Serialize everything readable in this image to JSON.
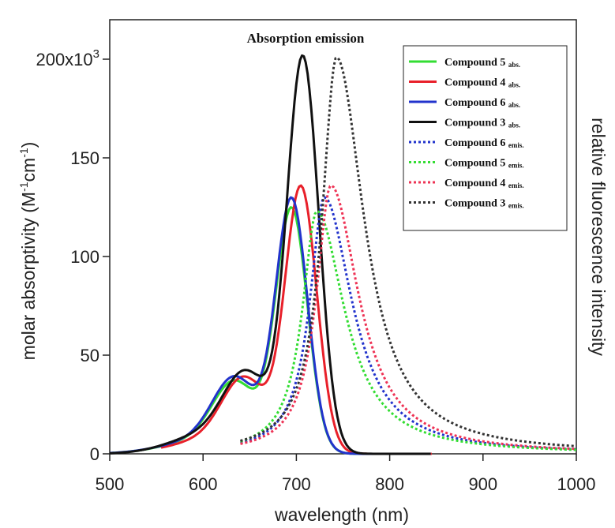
{
  "chart_data": {
    "type": "line",
    "annotation": "Absorption  emission",
    "xlabel": "wavelength (nm)",
    "ylabel": {
      "main": "molar absorptivity (M",
      "sup1": "-1",
      "mid": "cm",
      "sup2": "-1",
      "end": ")"
    },
    "y2label": "relative fluorescence intensity",
    "xlim": [
      500,
      1000
    ],
    "ylim": [
      0,
      220000
    ],
    "xticks": [
      500,
      600,
      700,
      800,
      900,
      1000
    ],
    "yticks": [
      {
        "value": 0,
        "label": "0"
      },
      {
        "value": 50000,
        "label": "50"
      },
      {
        "value": 100000,
        "label": "100"
      },
      {
        "value": 150000,
        "label": "150"
      },
      {
        "value": 200000,
        "label": "200x10",
        "sup": "3"
      }
    ],
    "legend_position": "top-right",
    "series": [
      {
        "name": "Compound 5",
        "sub": "abs.",
        "color": "#33dd33",
        "style": "solid",
        "kind": "abs",
        "peak_x": 695,
        "peak_y": 125000,
        "shoulder": 0.27,
        "start_x": 500
      },
      {
        "name": "Compound 4",
        "sub": "abs.",
        "color": "#e8202a",
        "style": "solid",
        "kind": "abs",
        "peak_x": 705,
        "peak_y": 136000,
        "shoulder": 0.26,
        "start_x": 555
      },
      {
        "name": "Compound 6",
        "sub": "abs.",
        "color": "#2233cc",
        "style": "solid",
        "kind": "abs",
        "peak_x": 695,
        "peak_y": 130000,
        "shoulder": 0.275,
        "start_x": 500
      },
      {
        "name": "Compound 3",
        "sub": "abs.",
        "color": "#111111",
        "style": "solid",
        "kind": "abs",
        "peak_x": 707,
        "peak_y": 202000,
        "shoulder": 0.18,
        "start_x": 500
      },
      {
        "name": "Compound 6",
        "sub": "emis.",
        "color": "#2233cc",
        "style": "dotted",
        "kind": "emis",
        "peak_x": 730,
        "peak_y": 130000,
        "start_x": 640
      },
      {
        "name": "Compound 5",
        "sub": "emis.",
        "color": "#33dd33",
        "style": "dotted",
        "kind": "emis",
        "peak_x": 722,
        "peak_y": 123000,
        "start_x": 640
      },
      {
        "name": "Compound 4",
        "sub": "emis.",
        "color": "#ee3355",
        "style": "dotted",
        "kind": "emis",
        "peak_x": 737,
        "peak_y": 136000,
        "start_x": 640
      },
      {
        "name": "Compound 3",
        "sub": "emis.",
        "color": "#333333",
        "style": "dotted",
        "kind": "emis",
        "peak_x": 743,
        "peak_y": 201000,
        "start_x": 640
      }
    ]
  }
}
